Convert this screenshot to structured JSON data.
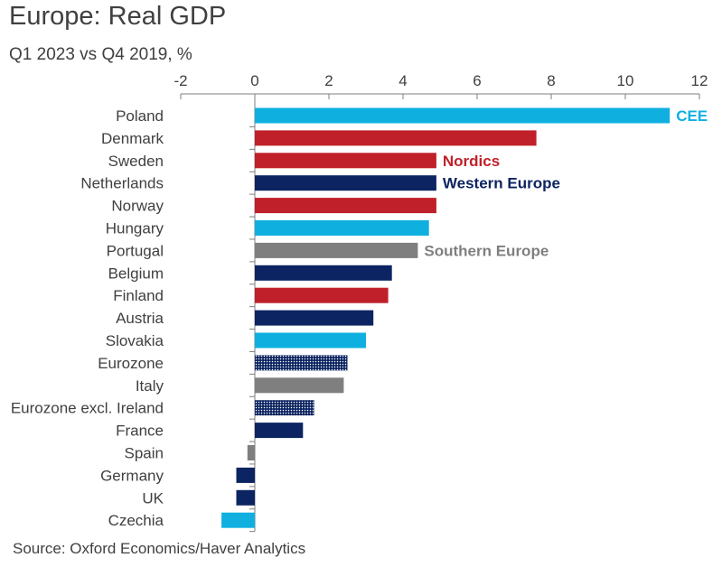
{
  "title": "Europe: Real GDP",
  "subtitle": "Q1 2023 vs Q4 2019, %",
  "source": "Source: Oxford Economics/Haver Analytics",
  "colors": {
    "CEE": "#0fb0e0",
    "Nordics": "#c0202a",
    "Western Europe": "#0c2461",
    "Southern Europe": "#7f7f7f",
    "Eurozone": "#0c2461",
    "axis": "#7f7f7f"
  },
  "chart_data": {
    "type": "bar",
    "orientation": "horizontal",
    "xlim": [
      -2,
      12
    ],
    "xticks": [
      -2,
      0,
      2,
      4,
      6,
      8,
      10,
      12
    ],
    "x_axis_position": "top",
    "grid": false,
    "categories": [
      "Poland",
      "Denmark",
      "Sweden",
      "Netherlands",
      "Norway",
      "Hungary",
      "Portugal",
      "Belgium",
      "Finland",
      "Austria",
      "Slovakia",
      "Eurozone",
      "Italy",
      "Eurozone excl. Ireland",
      "France",
      "Spain",
      "Germany",
      "UK",
      "Czechia"
    ],
    "values": [
      11.2,
      7.6,
      4.9,
      4.9,
      4.9,
      4.7,
      4.4,
      3.7,
      3.6,
      3.2,
      3.0,
      2.5,
      2.4,
      1.6,
      1.3,
      -0.2,
      -0.5,
      -0.5,
      -0.9
    ],
    "groups": [
      "CEE",
      "Nordics",
      "Nordics",
      "Western Europe",
      "Nordics",
      "CEE",
      "Southern Europe",
      "Western Europe",
      "Nordics",
      "Western Europe",
      "CEE",
      "Eurozone",
      "Southern Europe",
      "Eurozone",
      "Western Europe",
      "Southern Europe",
      "Western Europe",
      "Western Europe",
      "CEE"
    ],
    "patterned": [
      false,
      false,
      false,
      false,
      false,
      false,
      false,
      false,
      false,
      false,
      false,
      true,
      false,
      true,
      false,
      false,
      false,
      false,
      false
    ],
    "annotations": [
      {
        "text": "CEE",
        "category": "Poland",
        "group": "CEE"
      },
      {
        "text": "Nordics",
        "category": "Sweden",
        "group": "Nordics"
      },
      {
        "text": "Western Europe",
        "category": "Netherlands",
        "group": "Western Europe"
      },
      {
        "text": "Southern Europe",
        "category": "Portugal",
        "group": "Southern Europe"
      }
    ]
  }
}
